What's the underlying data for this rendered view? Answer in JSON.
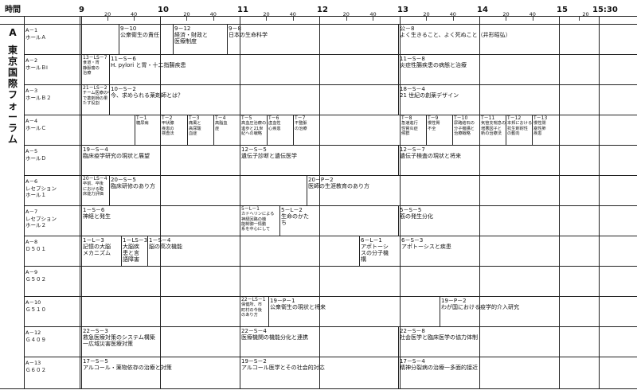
{
  "header": {
    "time_label": "時間",
    "hours": [
      "9",
      "10",
      "11",
      "12",
      "13",
      "14",
      "15"
    ],
    "end_label": "15:30",
    "minute_labels": [
      "20",
      "40"
    ],
    "minute_label_end": "20"
  },
  "forum": {
    "letter": "A",
    "name_chars": [
      "東",
      "京",
      "国",
      "際",
      "フ",
      "ォ",
      "ー",
      "ラ",
      "ム"
    ]
  },
  "rows": [
    {
      "code": "A－1",
      "hall": "ホールＡ",
      "sessions": [
        {
          "code": "9－10",
          "title": "公衆衛生の責任"
        },
        {
          "code": "9－12",
          "title": "経済・財政と\n医療制度"
        },
        {
          "code": "9－8",
          "title": "日本の生命科学"
        },
        {
          "code": "公－8",
          "title": "よく生きること、よく死ぬこと（井形昭弘）"
        }
      ]
    },
    {
      "code": "A－2",
      "hall": "ホールＢⅠ",
      "sessions": [
        {
          "code": "13－LS－7",
          "title": "食道・胃\n静脈瘤の\n治療"
        },
        {
          "code": "11－S－6",
          "title": "H. pylori と胃・十二指腸疾患"
        },
        {
          "code": "11－S－8",
          "title": "炎症性腸疾患の病態と治療"
        }
      ]
    },
    {
      "code": "A－3",
      "hall": "ホールＢ２",
      "sessions": [
        {
          "code": "21－LS－2",
          "title": "チーム医療の中\nで薬剤師の果\nたす役割"
        },
        {
          "code": "10－S－2",
          "title": "今、求められる薬剤師とは？"
        },
        {
          "code": "18－S－4",
          "title": "21 世紀の創薬デザイン"
        }
      ]
    },
    {
      "code": "A－4",
      "hall": "ホールＣ",
      "sessions": [
        {
          "code": "T－1",
          "title": "糖尿病"
        },
        {
          "code": "T－2",
          "title": "甲状腺\n疾患の\n検査法"
        },
        {
          "code": "T－3",
          "title": "痛風と\n高尿酸\n血症"
        },
        {
          "code": "T－4",
          "title": "高脂血\n症"
        },
        {
          "code": "T－5",
          "title": "高血圧治療の\n進歩と21世\n紀への戦略"
        },
        {
          "code": "T－6",
          "title": "虚血性\n心疾患"
        },
        {
          "code": "T－7",
          "title": "不整脈\nの治療"
        },
        {
          "code": "T－8",
          "title": "急速進行\n性腎炎症\n候群"
        },
        {
          "code": "T－9",
          "title": "慢性腎\n不全"
        },
        {
          "code": "T－10",
          "title": "尿路結石の\n分子機構と\n治療戦略"
        },
        {
          "code": "T－11",
          "title": "気管支喘息の\n増悪因子と\n新の治療法"
        },
        {
          "code": "T－12",
          "title": "本邦における\n抗生剤耐性\nの動向"
        },
        {
          "code": "T－13",
          "title": "慢性閉\n塞性肺\n疾患"
        }
      ]
    },
    {
      "code": "A－5",
      "hall": "ホールＤ",
      "sessions": [
        {
          "code": "19－S－4",
          "title": "臨床疫学研究の現状と展望"
        },
        {
          "code": "12－S－5",
          "title": "遺伝子診断と遺伝医学"
        },
        {
          "code": "12－S－7",
          "title": "遺伝子検査の現状と将来"
        }
      ]
    },
    {
      "code": "A－6",
      "hall": "レセプション\nホール１",
      "sessions": [
        {
          "code": "20－LS－4",
          "title": "卒前、卒後\nにおける臨\n床能力評価"
        },
        {
          "code": "20－S－5",
          "title": "臨床研修のあり方"
        },
        {
          "code": "20－P－2",
          "title": "医師の生涯教育のあり方"
        }
      ]
    },
    {
      "code": "A－7",
      "hall": "レセプション\nホール２",
      "sessions": [
        {
          "code": "1－S－6",
          "title": "神経と発生"
        },
        {
          "code": "5－L－1",
          "title": "カドヘリンによる\n神経回路の機\n能制御一情動\n系を中心にして"
        },
        {
          "code": "5－L－2",
          "title": "生命のかた\nち"
        },
        {
          "code": "5－S－5",
          "title": "筋の発生分化"
        }
      ]
    },
    {
      "code": "A－8",
      "hall": "Ｄ５０１",
      "sessions": [
        {
          "code": "1－L－3",
          "title": "記憶の大脳\nメカニズム"
        },
        {
          "code": "1－LS－3",
          "title": "大脳疾\n患と言\n語障害"
        },
        {
          "code": "1－S－4",
          "title": "脳の高次機能"
        },
        {
          "code": "6－L－1",
          "title": "アポトーシ\nスの分子機\n構"
        },
        {
          "code": "6－S－3",
          "title": "アポトーシスと疾患"
        }
      ]
    },
    {
      "code": "A－9",
      "hall": "Ｇ５０２",
      "sessions": []
    },
    {
      "code": "A－10",
      "hall": "Ｇ５１０",
      "sessions": [
        {
          "code": "22－LS－1",
          "title": "保健所、市\n町村の今後\nのあり方"
        },
        {
          "code": "19－P－1",
          "title": "公衆衛生の現状と将来"
        },
        {
          "code": "19－P－2",
          "title": "わが国における疫学的介入研究"
        }
      ]
    },
    {
      "code": "A－12",
      "hall": "Ｇ４０９",
      "sessions": [
        {
          "code": "22－S－3",
          "title": "救急医療対策のシステム構築\n一広域災害医療対策"
        },
        {
          "code": "22－S－4",
          "title": "医療機関の機能分化と連携"
        },
        {
          "code": "22－S－8",
          "title": "社会医学と臨床医学の協力体制"
        }
      ]
    },
    {
      "code": "A－13",
      "hall": "Ｇ６０２",
      "sessions": [
        {
          "code": "17－S－5",
          "title": "アルコール・薬物依存の治療と対策"
        },
        {
          "code": "19－S－2",
          "title": "アルコール医学とその社会的対応"
        },
        {
          "code": "17－S－4",
          "title": "精神分裂病の治療一多面的接近"
        }
      ]
    }
  ]
}
